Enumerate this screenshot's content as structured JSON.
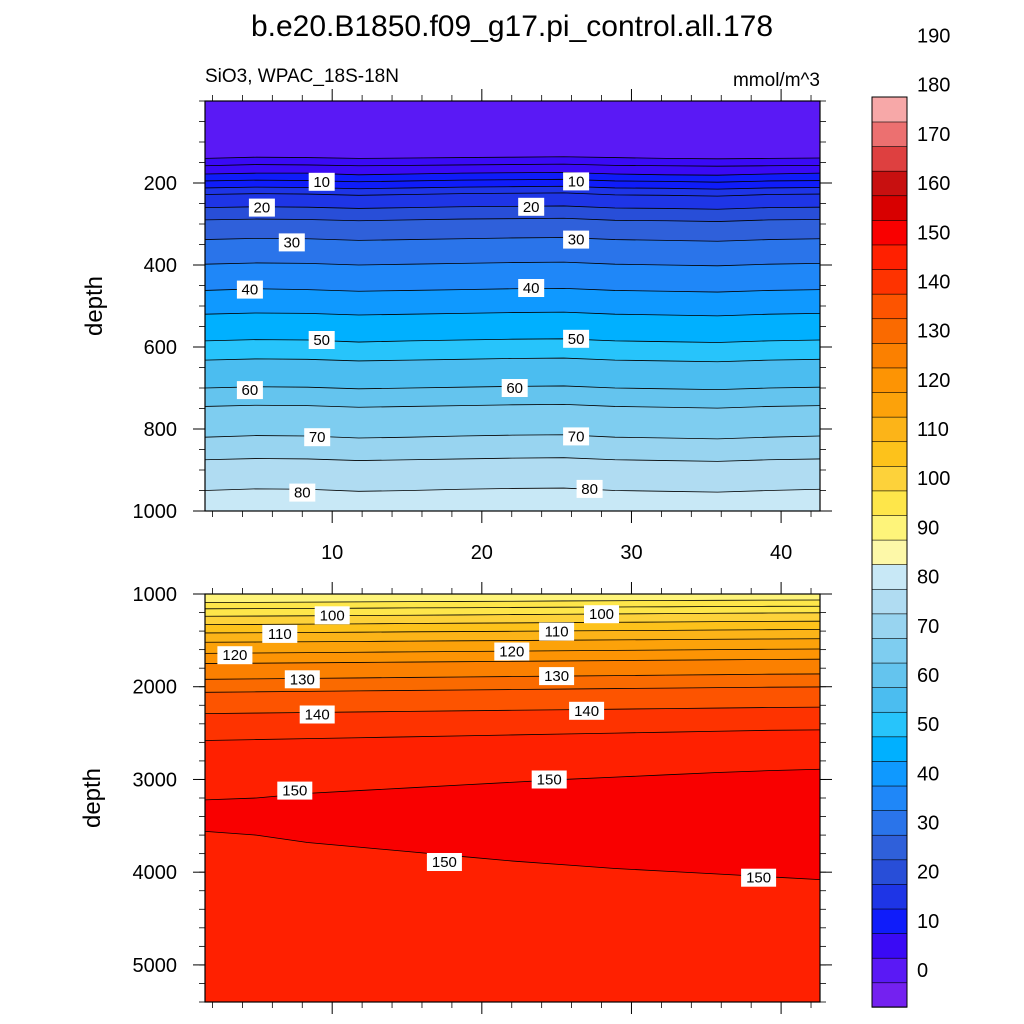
{
  "title": "b.e20.B1850.f09_g17.pi_control.all.178",
  "subtitle_left": "SiO3, WPAC_18S-18N",
  "subtitle_right": "mmol/m^3",
  "ylabel": "depth",
  "colorbar": {
    "levels": [
      0,
      10,
      20,
      30,
      40,
      50,
      60,
      70,
      80,
      90,
      100,
      110,
      120,
      130,
      140,
      150,
      160,
      170,
      180,
      190
    ],
    "tick_labels": [
      "0",
      "10",
      "20",
      "30",
      "40",
      "50",
      "60",
      "70",
      "80",
      "90",
      "100",
      "110",
      "120",
      "130",
      "140",
      "150",
      "160",
      "170",
      "180",
      "190"
    ],
    "colors": [
      "#7421f0",
      "#5a19f5",
      "#3a0af5",
      "#0f1cfa",
      "#1e35e6",
      "#284ed8",
      "#2f60da",
      "#2a74ea",
      "#1f87f8",
      "#0f99ff",
      "#00b0ff",
      "#27c4fb",
      "#4bbdf0",
      "#64c4ee",
      "#7ecdf0",
      "#98d4f0",
      "#b0dcf2",
      "#c8e8f6",
      "#fdf8a8",
      "#fef47a",
      "#fee64a",
      "#fdd23a",
      "#fdc21b",
      "#fcb418",
      "#fca20a",
      "#fd9404",
      "#fb8000",
      "#fa6a00",
      "#fd5400",
      "#fe3300",
      "#ff2000",
      "#f90000",
      "#d80000",
      "#c81010",
      "#de4040",
      "#ec7070",
      "#f7a8a8"
    ]
  },
  "chart_data": [
    {
      "type": "heatmap",
      "panel": "upper",
      "variable": "SiO3",
      "units": "mmol/m^3",
      "ylabel": "depth",
      "x_ticks": [
        10,
        20,
        30,
        40
      ],
      "x_tick_labels": [
        "10",
        "20",
        "30",
        "40"
      ],
      "xlim": [
        1.5,
        42.6
      ],
      "y_ticks": [
        200,
        400,
        600,
        800,
        1000
      ],
      "y_tick_labels": [
        "200",
        "400",
        "600",
        "800",
        "1000"
      ],
      "ylim": [
        0,
        1000
      ],
      "contours": [
        {
          "level": 2.5,
          "depth": [
            140,
            137,
            138,
            140,
            139,
            138,
            137,
            136,
            138,
            140,
            141,
            140,
            139
          ]
        },
        {
          "level": 5,
          "depth": [
            158,
            155,
            156,
            158,
            157,
            156,
            155,
            154,
            157,
            158,
            159,
            158,
            157
          ]
        },
        {
          "level": 7.5,
          "depth": [
            178,
            176,
            176,
            180,
            178,
            176,
            175,
            174,
            178,
            180,
            181,
            178,
            176
          ]
        },
        {
          "level": 10,
          "depth": [
            195,
            193,
            194,
            197,
            195,
            193,
            192,
            191,
            195,
            196,
            198,
            195,
            194
          ]
        },
        {
          "level": 12.5,
          "depth": [
            212,
            210,
            211,
            214,
            212,
            210,
            209,
            208,
            212,
            213,
            215,
            212,
            211
          ]
        },
        {
          "level": 15,
          "depth": [
            228,
            226,
            227,
            230,
            228,
            226,
            225,
            224,
            229,
            230,
            232,
            228,
            227
          ]
        },
        {
          "level": 20,
          "depth": [
            260,
            258,
            259,
            262,
            260,
            258,
            257,
            256,
            261,
            262,
            264,
            260,
            259
          ]
        },
        {
          "level": 25,
          "depth": [
            290,
            288,
            289,
            292,
            290,
            288,
            287,
            286,
            291,
            292,
            294,
            290,
            289
          ]
        },
        {
          "level": 30,
          "depth": [
            338,
            335,
            336,
            340,
            338,
            336,
            334,
            333,
            338,
            340,
            342,
            338,
            336
          ]
        },
        {
          "level": 35,
          "depth": [
            398,
            395,
            396,
            400,
            398,
            396,
            394,
            393,
            398,
            400,
            402,
            398,
            396
          ]
        },
        {
          "level": 40,
          "depth": [
            462,
            458,
            460,
            464,
            462,
            460,
            458,
            457,
            462,
            464,
            466,
            462,
            460
          ]
        },
        {
          "level": 45,
          "depth": [
            520,
            517,
            518,
            522,
            520,
            518,
            516,
            515,
            520,
            522,
            524,
            520,
            518
          ]
        },
        {
          "level": 50,
          "depth": [
            585,
            582,
            583,
            588,
            585,
            583,
            581,
            580,
            585,
            587,
            589,
            585,
            583
          ]
        },
        {
          "level": 55,
          "depth": [
            632,
            629,
            630,
            634,
            632,
            630,
            628,
            627,
            632,
            634,
            636,
            632,
            630
          ]
        },
        {
          "level": 60,
          "depth": [
            700,
            697,
            698,
            702,
            700,
            698,
            696,
            695,
            700,
            702,
            704,
            700,
            698
          ]
        },
        {
          "level": 65,
          "depth": [
            745,
            742,
            743,
            747,
            745,
            743,
            741,
            740,
            745,
            747,
            749,
            745,
            743
          ]
        },
        {
          "level": 70,
          "depth": [
            820,
            816,
            817,
            822,
            820,
            817,
            815,
            814,
            820,
            822,
            824,
            820,
            817
          ]
        },
        {
          "level": 75,
          "depth": [
            875,
            872,
            873,
            877,
            875,
            873,
            871,
            870,
            875,
            877,
            879,
            875,
            873
          ]
        },
        {
          "level": 80,
          "depth": [
            950,
            946,
            947,
            952,
            950,
            947,
            945,
            944,
            950,
            952,
            954,
            950,
            947
          ]
        }
      ],
      "contour_labels": [
        {
          "text": "10",
          "x": 9.3,
          "depth": 197
        },
        {
          "text": "10",
          "x": 26.3,
          "depth": 196
        },
        {
          "text": "20",
          "x": 5.3,
          "depth": 260
        },
        {
          "text": "20",
          "x": 23.3,
          "depth": 258
        },
        {
          "text": "30",
          "x": 7.3,
          "depth": 345
        },
        {
          "text": "30",
          "x": 26.3,
          "depth": 338
        },
        {
          "text": "40",
          "x": 4.5,
          "depth": 460
        },
        {
          "text": "40",
          "x": 23.3,
          "depth": 456
        },
        {
          "text": "50",
          "x": 9.3,
          "depth": 583
        },
        {
          "text": "50",
          "x": 26.3,
          "depth": 580
        },
        {
          "text": "60",
          "x": 4.5,
          "depth": 705
        },
        {
          "text": "60",
          "x": 22.2,
          "depth": 700
        },
        {
          "text": "70",
          "x": 9.0,
          "depth": 820
        },
        {
          "text": "70",
          "x": 26.3,
          "depth": 818
        },
        {
          "text": "80",
          "x": 8.0,
          "depth": 955
        },
        {
          "text": "80",
          "x": 27.2,
          "depth": 946
        }
      ]
    },
    {
      "type": "heatmap",
      "panel": "lower",
      "variable": "SiO3",
      "units": "mmol/m^3",
      "ylabel": "depth",
      "y_ticks": [
        1000,
        2000,
        3000,
        4000,
        5000
      ],
      "y_tick_labels": [
        "1000",
        "2000",
        "3000",
        "4000",
        "5000"
      ],
      "ylim": [
        1000,
        5400
      ],
      "xlim": [
        1.5,
        42.6
      ],
      "contours": [
        {
          "level": 92.5,
          "depth": [
            1090,
            1090,
            1088,
            1085,
            1082,
            1080,
            1078,
            1075,
            1073,
            1070,
            1068,
            1066,
            1065
          ]
        },
        {
          "level": 95,
          "depth": [
            1160,
            1158,
            1156,
            1153,
            1150,
            1148,
            1145,
            1142,
            1140,
            1138,
            1135,
            1133,
            1132
          ]
        },
        {
          "level": 100,
          "depth": [
            1240,
            1238,
            1235,
            1232,
            1229,
            1226,
            1222,
            1218,
            1215,
            1212,
            1208,
            1205,
            1203
          ]
        },
        {
          "level": 105,
          "depth": [
            1330,
            1328,
            1325,
            1322,
            1318,
            1315,
            1312,
            1308,
            1305,
            1302,
            1298,
            1295,
            1293
          ]
        },
        {
          "level": 110,
          "depth": [
            1420,
            1418,
            1415,
            1412,
            1408,
            1405,
            1402,
            1398,
            1395,
            1392,
            1388,
            1385,
            1383
          ]
        },
        {
          "level": 115,
          "depth": [
            1520,
            1518,
            1515,
            1512,
            1508,
            1505,
            1502,
            1498,
            1495,
            1492,
            1488,
            1485,
            1483
          ]
        },
        {
          "level": 120,
          "depth": [
            1640,
            1636,
            1632,
            1628,
            1624,
            1620,
            1616,
            1612,
            1608,
            1604,
            1600,
            1596,
            1593
          ]
        },
        {
          "level": 125,
          "depth": [
            1750,
            1746,
            1742,
            1738,
            1734,
            1730,
            1726,
            1722,
            1718,
            1714,
            1710,
            1706,
            1703
          ]
        },
        {
          "level": 130,
          "depth": [
            1920,
            1915,
            1910,
            1905,
            1900,
            1895,
            1890,
            1885,
            1880,
            1875,
            1870,
            1865,
            1862
          ]
        },
        {
          "level": 135,
          "depth": [
            2060,
            2055,
            2050,
            2045,
            2040,
            2035,
            2030,
            2025,
            2020,
            2015,
            2010,
            2005,
            2002
          ]
        },
        {
          "level": 140,
          "depth": [
            2290,
            2284,
            2278,
            2272,
            2266,
            2260,
            2254,
            2248,
            2242,
            2236,
            2230,
            2224,
            2220
          ]
        },
        {
          "level": 145,
          "depth": [
            2580,
            2570,
            2560,
            2550,
            2540,
            2530,
            2520,
            2510,
            2500,
            2490,
            2480,
            2470,
            2465
          ]
        },
        {
          "level": 150,
          "depth": [
            3220,
            3200,
            3150,
            3120,
            3090,
            3060,
            3030,
            3000,
            2975,
            2950,
            2925,
            2905,
            2890
          ]
        },
        {
          "level": 150,
          "depth": [
            3560,
            3600,
            3680,
            3730,
            3780,
            3830,
            3880,
            3920,
            3960,
            3990,
            4020,
            4050,
            4080
          ]
        }
      ],
      "contour_labels": [
        {
          "text": "100",
          "x": 10.0,
          "depth": 1230
        },
        {
          "text": "100",
          "x": 28.0,
          "depth": 1218
        },
        {
          "text": "110",
          "x": 6.5,
          "depth": 1430
        },
        {
          "text": "110",
          "x": 25.0,
          "depth": 1405
        },
        {
          "text": "120",
          "x": 3.5,
          "depth": 1660
        },
        {
          "text": "120",
          "x": 22.0,
          "depth": 1620
        },
        {
          "text": "130",
          "x": 8.0,
          "depth": 1920
        },
        {
          "text": "130",
          "x": 25.0,
          "depth": 1885
        },
        {
          "text": "140",
          "x": 9.0,
          "depth": 2300
        },
        {
          "text": "140",
          "x": 27.0,
          "depth": 2260
        },
        {
          "text": "150",
          "x": 7.5,
          "depth": 3120
        },
        {
          "text": "150",
          "x": 24.5,
          "depth": 3000
        },
        {
          "text": "150",
          "x": 17.5,
          "depth": 3890
        },
        {
          "text": "150",
          "x": 38.5,
          "depth": 4060
        }
      ]
    }
  ]
}
